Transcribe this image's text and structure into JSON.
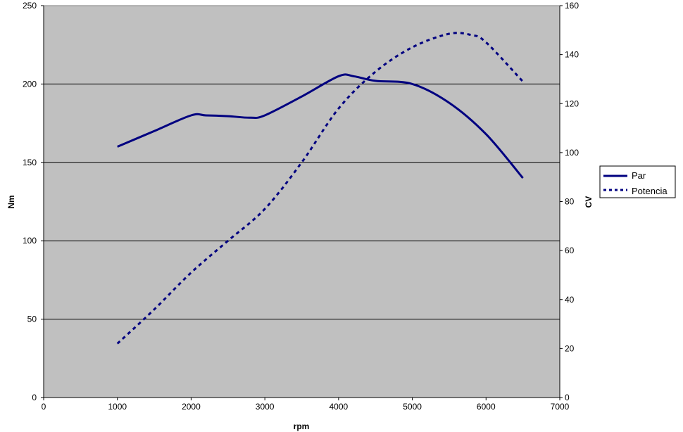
{
  "chart_data": {
    "type": "line",
    "title": "",
    "xlabel": "rpm",
    "ylabel": "Nm",
    "y2label": "CV",
    "xlim": [
      0,
      7000
    ],
    "ylim": [
      0,
      250
    ],
    "y2lim": [
      0,
      160
    ],
    "x_ticks": [
      0,
      1000,
      2000,
      3000,
      4000,
      5000,
      6000,
      7000
    ],
    "y_ticks": [
      0,
      50,
      100,
      150,
      200,
      250
    ],
    "y2_ticks": [
      0,
      20,
      40,
      60,
      80,
      100,
      120,
      140,
      160
    ],
    "grid": "horizontal",
    "legend_position": "right",
    "background": "#c0c0c0",
    "series_color": "#000080",
    "series": [
      {
        "name": "Par",
        "axis": "left",
        "style": "solid",
        "x": [
          1000,
          1500,
          2000,
          2200,
          2500,
          2800,
          3000,
          3500,
          4000,
          4200,
          4500,
          5000,
          5500,
          6000,
          6500
        ],
        "values": [
          160,
          170,
          180,
          180,
          179.5,
          178.5,
          180,
          192,
          205,
          205,
          202,
          200,
          188,
          168,
          140
        ]
      },
      {
        "name": "Potencia",
        "axis": "right",
        "style": "dashed",
        "x": [
          1000,
          1500,
          2000,
          2500,
          3000,
          3500,
          4000,
          4500,
          5000,
          5500,
          5800,
          6000,
          6500
        ],
        "values": [
          22,
          36,
          51,
          64,
          77,
          96,
          118,
          133,
          143,
          148.5,
          148,
          145,
          129
        ]
      }
    ]
  }
}
